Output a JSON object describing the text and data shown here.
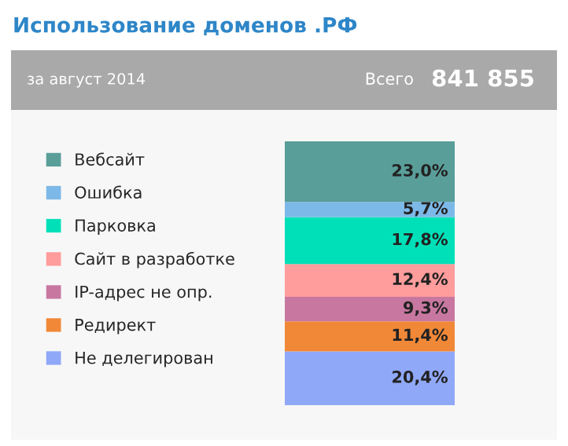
{
  "chart_data": {
    "type": "bar",
    "title": "Использование доменов .РФ",
    "subtitle": "за август 2014",
    "annotations": [
      "Всего",
      "841 855"
    ],
    "categories": [
      null
    ],
    "stacked": true,
    "tick_labels": false,
    "legend": "left",
    "series": [
      {
        "name": "Не делегирован",
        "color": "#90a8f8",
        "values": [
          20.4
        ],
        "value_labels": [
          "20,4%"
        ]
      },
      {
        "name": "Редирект",
        "color": "#f08838",
        "values": [
          11.4
        ],
        "value_labels": [
          "11,4%"
        ]
      },
      {
        "name": "IP-адрес не опр.",
        "color": "#c878a0",
        "values": [
          9.3
        ],
        "value_labels": [
          "9,3%"
        ]
      },
      {
        "name": "Сайт в разработке",
        "color": "#ff9c9c",
        "values": [
          12.4
        ],
        "value_labels": [
          "12,4%"
        ]
      },
      {
        "name": "Парковка",
        "color": "#00e0b8",
        "values": [
          17.8
        ],
        "value_labels": [
          "17,8%"
        ]
      },
      {
        "name": "Ошибка",
        "color": "#7db9e8",
        "values": [
          5.7
        ],
        "value_labels": [
          "5,7%"
        ]
      },
      {
        "name": "Вебсайт",
        "color": "#5a9e9a",
        "values": [
          23.0
        ],
        "value_labels": [
          "23,0%"
        ]
      }
    ]
  }
}
